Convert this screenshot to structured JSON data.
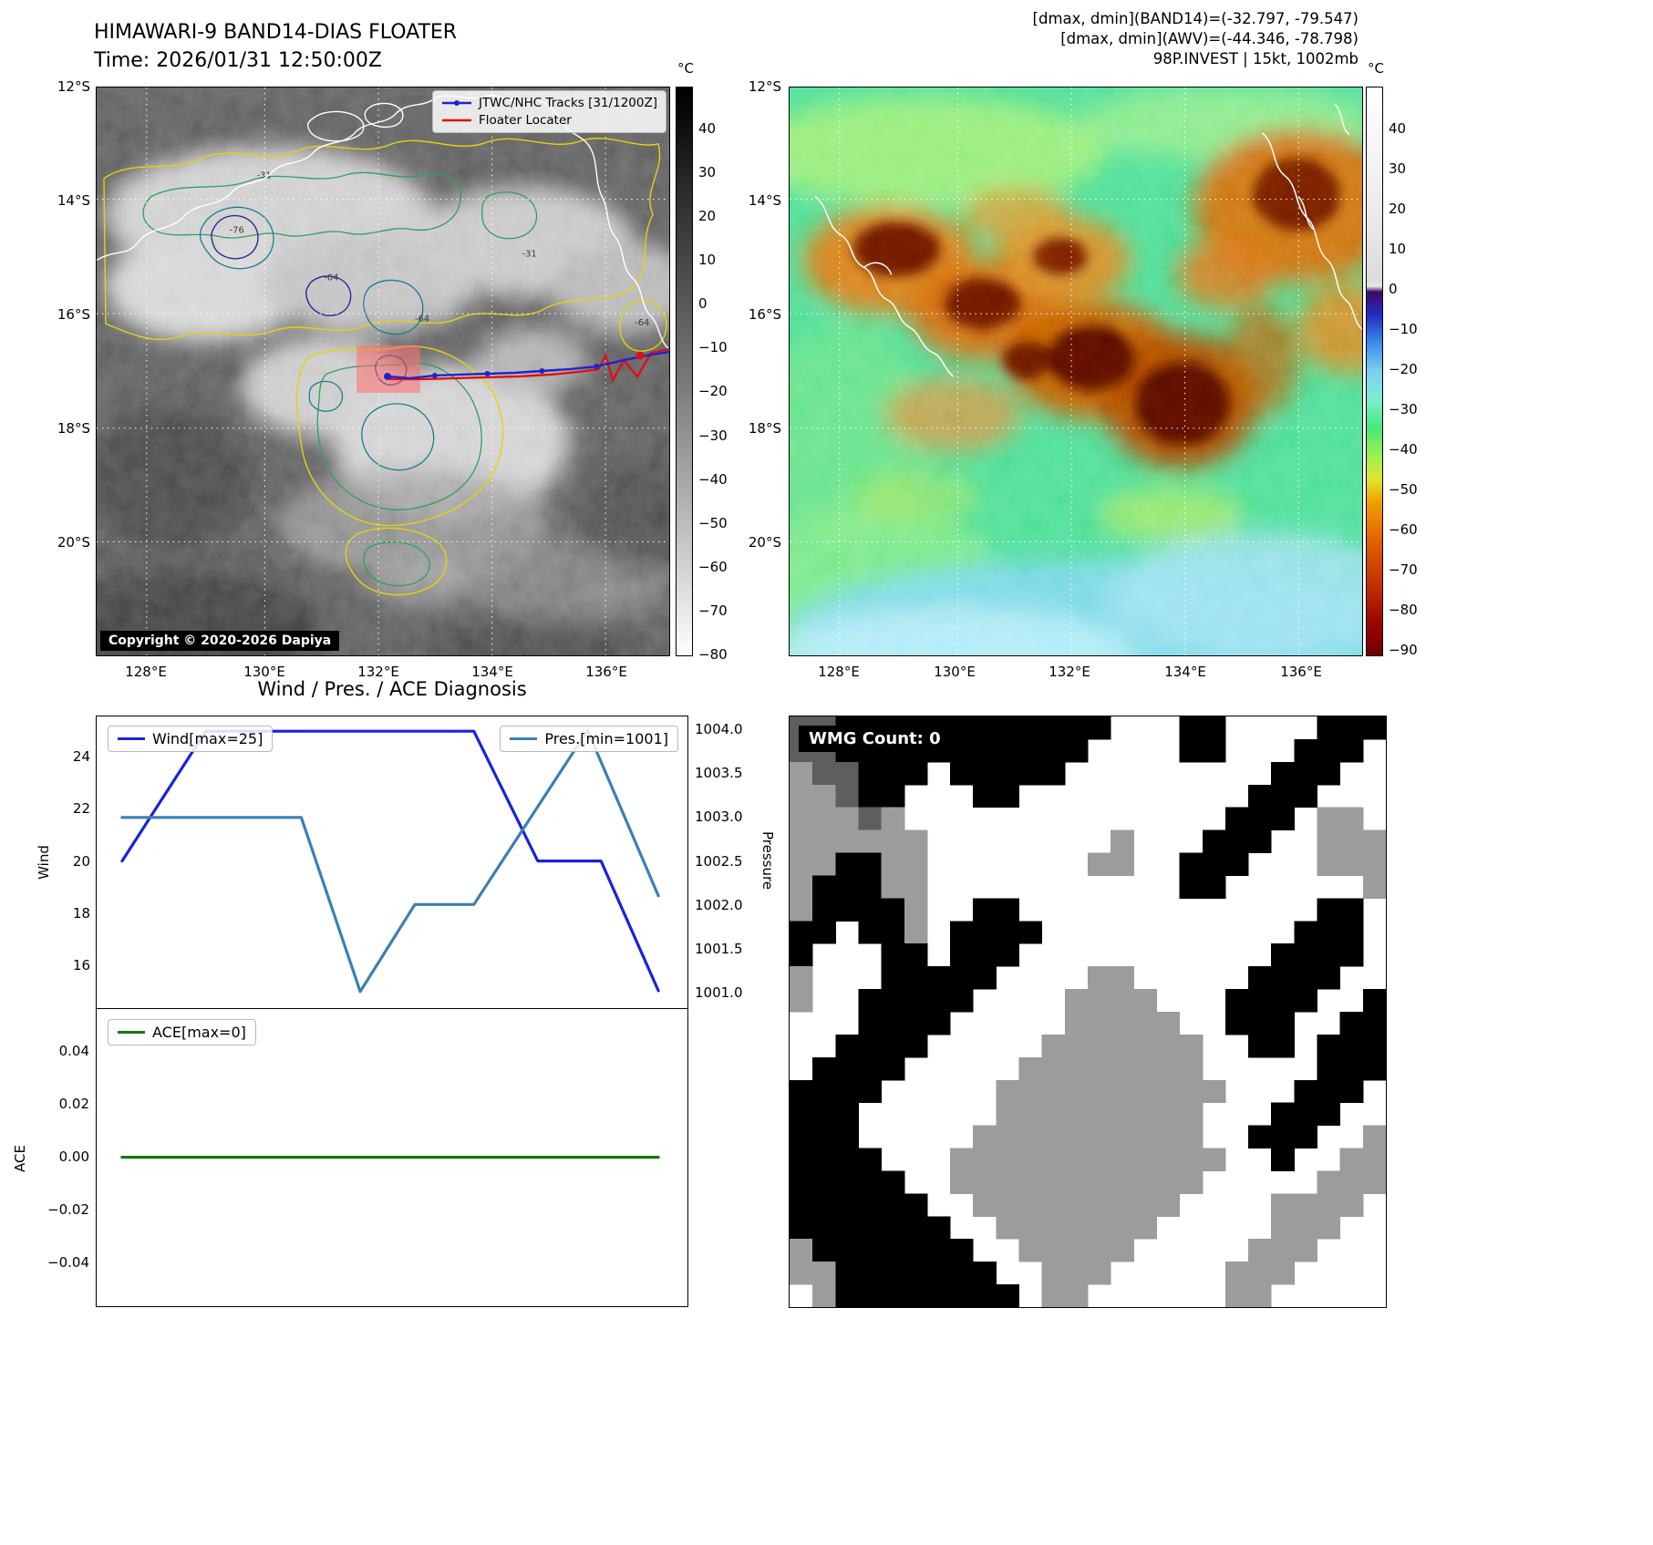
{
  "tl": {
    "title": "HIMAWARI-9 BAND14-DIAS FLOATER",
    "time": "Time: 2026/01/31 12:50:00Z",
    "legend": {
      "track": "JTWC/NHC Tracks [31/1200Z]",
      "floater": "Floater Locater"
    },
    "copyright": "Copyright © 2020-2026 Dapiya",
    "lat_ticks": [
      "12°S",
      "14°S",
      "16°S",
      "18°S",
      "20°S"
    ],
    "lon_ticks": [
      "128°E",
      "130°E",
      "132°E",
      "134°E",
      "136°E"
    ],
    "colorbar": {
      "unit": "°C",
      "ticks": [
        "40",
        "30",
        "20",
        "10",
        "0",
        "−10",
        "−20",
        "−30",
        "−40",
        "−50",
        "−60",
        "−70",
        "−80"
      ]
    },
    "contour_labels": [
      "-31",
      "-64",
      "-76",
      "-64",
      "-31",
      "-64"
    ]
  },
  "tr": {
    "header_lines": [
      "[dmax, dmin](BAND14)=(-32.797, -79.547)",
      "[dmax, dmin](AWV)=(-44.346, -78.798)",
      "98P.INVEST | 15kt, 1002mb"
    ],
    "lat_ticks": [
      "12°S",
      "14°S",
      "16°S",
      "18°S",
      "20°S"
    ],
    "lon_ticks": [
      "128°E",
      "130°E",
      "132°E",
      "134°E",
      "136°E"
    ],
    "colorbar": {
      "unit": "°C",
      "ticks": [
        "40",
        "30",
        "20",
        "10",
        "0",
        "−10",
        "−20",
        "−30",
        "−40",
        "−50",
        "−60",
        "−70",
        "−80",
        "−90"
      ]
    }
  },
  "bl": {
    "title": "Wind / Pres. / ACE Diagnosis",
    "wind_legend": "Wind[max=25]",
    "pres_legend": "Pres.[min=1001]",
    "ace_legend": "ACE[max=0]",
    "ylabel_wind": "Wind",
    "ylabel_pressure": "Pressure",
    "ylabel_ace": "ACE",
    "wind_ticks": [
      "24",
      "22",
      "20",
      "18",
      "16"
    ],
    "pres_ticks": [
      "1004.0",
      "1003.5",
      "1003.0",
      "1002.5",
      "1002.0",
      "1001.5",
      "1001.0"
    ],
    "ace_ticks": [
      "0.04",
      "0.02",
      "0.00",
      "−0.02",
      "−0.04"
    ]
  },
  "br": {
    "wmg_label": "WMG Count: 0",
    "palette": {
      "W": "#ffffff",
      "B": "#000000",
      "G": "#9c9c9c",
      "D": "#5e5e5e"
    },
    "grid_rows": [
      "DDBBBBBBBBBBBBWWWBBWWWWBBB",
      "DDBBBBBBBBBBBWWWWBBWWWBBBW",
      "GDDBBBWBBBBBWWWWWWWWWBBBWW",
      "GGDBBWWWBBWWWWWWWWWWBBBWWW",
      "GGGDGWWWWWWWWWWWWWWBBBWGGW",
      "GGGGGGWWWWWWWWGWWWBBBWWGGG",
      "GGBBGGWWWWWWWGGWWBBBWWWGGG",
      "GBBBGGWWWWWWWWWWWBBWWWWWWG",
      "GBBBBGWWBBWWWWWWWWWWWWWBBW",
      "BBWBBGWBBBBWWWWWWWWWWWBBBW",
      "BWWWBBWBBBWWWWWWWWWWWBBBBW",
      "GWWWBBBBBWWWWGGWWWWWBBBBWW",
      "GWWBBBBBWWWWGGGGWWWBBBBWWB",
      "WWWBBBBWWWWWGGGGGWWBBBWWBB",
      "WWBBBBWWWWWGGGGGGGWWBBWBBB",
      "WBBBBWWWWWGGGGGGGGWWWWWBBB",
      "BBBBWWWWWGGGGGGGGGGWWWBBBW",
      "BBBWWWWWWGGGGGGGGGWWWBBBWW",
      "BBBWWWWWGGGGGGGGGGWWBBBWWG",
      "BBBBWWWGGGGGGGGGGGGWWBWWGG",
      "BBBBBWWGGGGGGGGGGGWWWWWGGG",
      "BBBBBBWWGGGGGGGGGWWWWGGGGW",
      "BBBBBBBWWGGGGGGGWWWWWGGGWW",
      "GBBBBBBBWWGGGGGWWWWWGGGWWW",
      "GGBBBBBBBWWGGGWWWWWGGGWWWW",
      "WGBBBBBBBBWGGWWWWWWGGWWWWW"
    ]
  },
  "colors": {
    "track": "#2222cc",
    "floater": "#dd1111",
    "highlight_box": "#ff6e6e",
    "wind": "#1822dd",
    "pressure": "#3b7fb4",
    "ace": "#157815"
  },
  "chart_data": [
    {
      "type": "line",
      "title": "Wind / Pres. / ACE Diagnosis",
      "x_mode": "normalized time 0-1 across diagnosis window",
      "series": [
        {
          "name": "Wind[max=25]",
          "yaxis": "left",
          "color": "#1822dd",
          "x": [
            0,
            0.156,
            0.656,
            0.775,
            0.893,
            1
          ],
          "values": [
            20,
            25,
            25,
            20,
            20,
            15
          ]
        },
        {
          "name": "Pres.[min=1001]",
          "yaxis": "right",
          "color": "#3b7fb4",
          "x": [
            0,
            0.334,
            0.444,
            0.546,
            0.656,
            0.868,
            1
          ],
          "values": [
            1003,
            1003,
            1001,
            1002,
            1002,
            1004,
            1002.1
          ]
        }
      ],
      "ylabel": "Wind",
      "ylim": [
        14.33,
        25.57
      ],
      "yticks": [
        24,
        22,
        20,
        18,
        16
      ],
      "y2label": "Pressure",
      "y2lim": [
        1000.81,
        1004.16
      ],
      "y2ticks": [
        1004.0,
        1003.5,
        1003.0,
        1002.5,
        1002.0,
        1001.5,
        1001.0
      ],
      "legend_position": "upper left / upper right",
      "grid": false
    },
    {
      "type": "line",
      "series": [
        {
          "name": "ACE[max=0]",
          "yaxis": "left",
          "color": "#157815",
          "x": [
            0,
            1
          ],
          "values": [
            0,
            0
          ]
        }
      ],
      "ylabel": "ACE",
      "ylim": [
        -0.0566,
        0.0563
      ],
      "yticks": [
        0.04,
        0.02,
        0.0,
        -0.02,
        -0.04
      ],
      "legend_position": "upper left",
      "grid": false
    }
  ]
}
